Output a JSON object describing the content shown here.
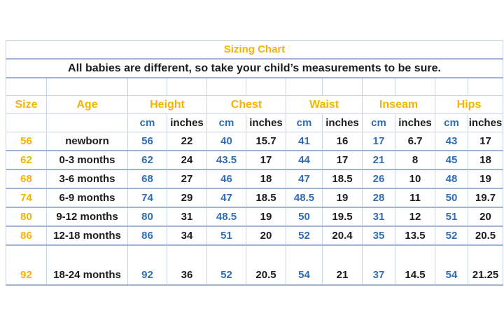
{
  "title": "Sizing Chart",
  "subtitle": "All babies are different, so take your child’s measurements to be sure.",
  "headers": {
    "size": "Size",
    "age": "Age",
    "groups": [
      "Height",
      "Chest",
      "Waist",
      "Inseam",
      "Hips"
    ],
    "unit_cm": "cm",
    "unit_in": "inches"
  },
  "rows": [
    {
      "size": "56",
      "age": "newborn",
      "values": [
        "56",
        "22",
        "40",
        "15.7",
        "41",
        "16",
        "17",
        "6.7",
        "43",
        "17"
      ]
    },
    {
      "size": "62",
      "age": "0-3 months",
      "values": [
        "62",
        "24",
        "43.5",
        "17",
        "44",
        "17",
        "21",
        "8",
        "45",
        "18"
      ]
    },
    {
      "size": "68",
      "age": "3-6 months",
      "values": [
        "68",
        "27",
        "46",
        "18",
        "47",
        "18.5",
        "26",
        "10",
        "48",
        "19"
      ]
    },
    {
      "size": "74",
      "age": "6-9 months",
      "values": [
        "74",
        "29",
        "47",
        "18.5",
        "48.5",
        "19",
        "28",
        "11",
        "50",
        "19.7"
      ]
    },
    {
      "size": "80",
      "age": "9-12 months",
      "values": [
        "80",
        "31",
        "48.5",
        "19",
        "50",
        "19.5",
        "31",
        "12",
        "51",
        "20"
      ]
    },
    {
      "size": "86",
      "age": "12-18 months",
      "values": [
        "86",
        "34",
        "51",
        "20",
        "52",
        "20.4",
        "35",
        "13.5",
        "52",
        "20.5"
      ]
    },
    {
      "size": "92",
      "age": "18-24 months",
      "values": [
        "92",
        "36",
        "52",
        "20.5",
        "54",
        "21",
        "37",
        "14.5",
        "54",
        "21.25"
      ]
    }
  ],
  "colors": {
    "accent": "#f4b400",
    "cm_blue": "#2f6eb5",
    "text": "#1c1c1c",
    "grid": "#c9d3e3",
    "rule": "#9fb3d6"
  }
}
